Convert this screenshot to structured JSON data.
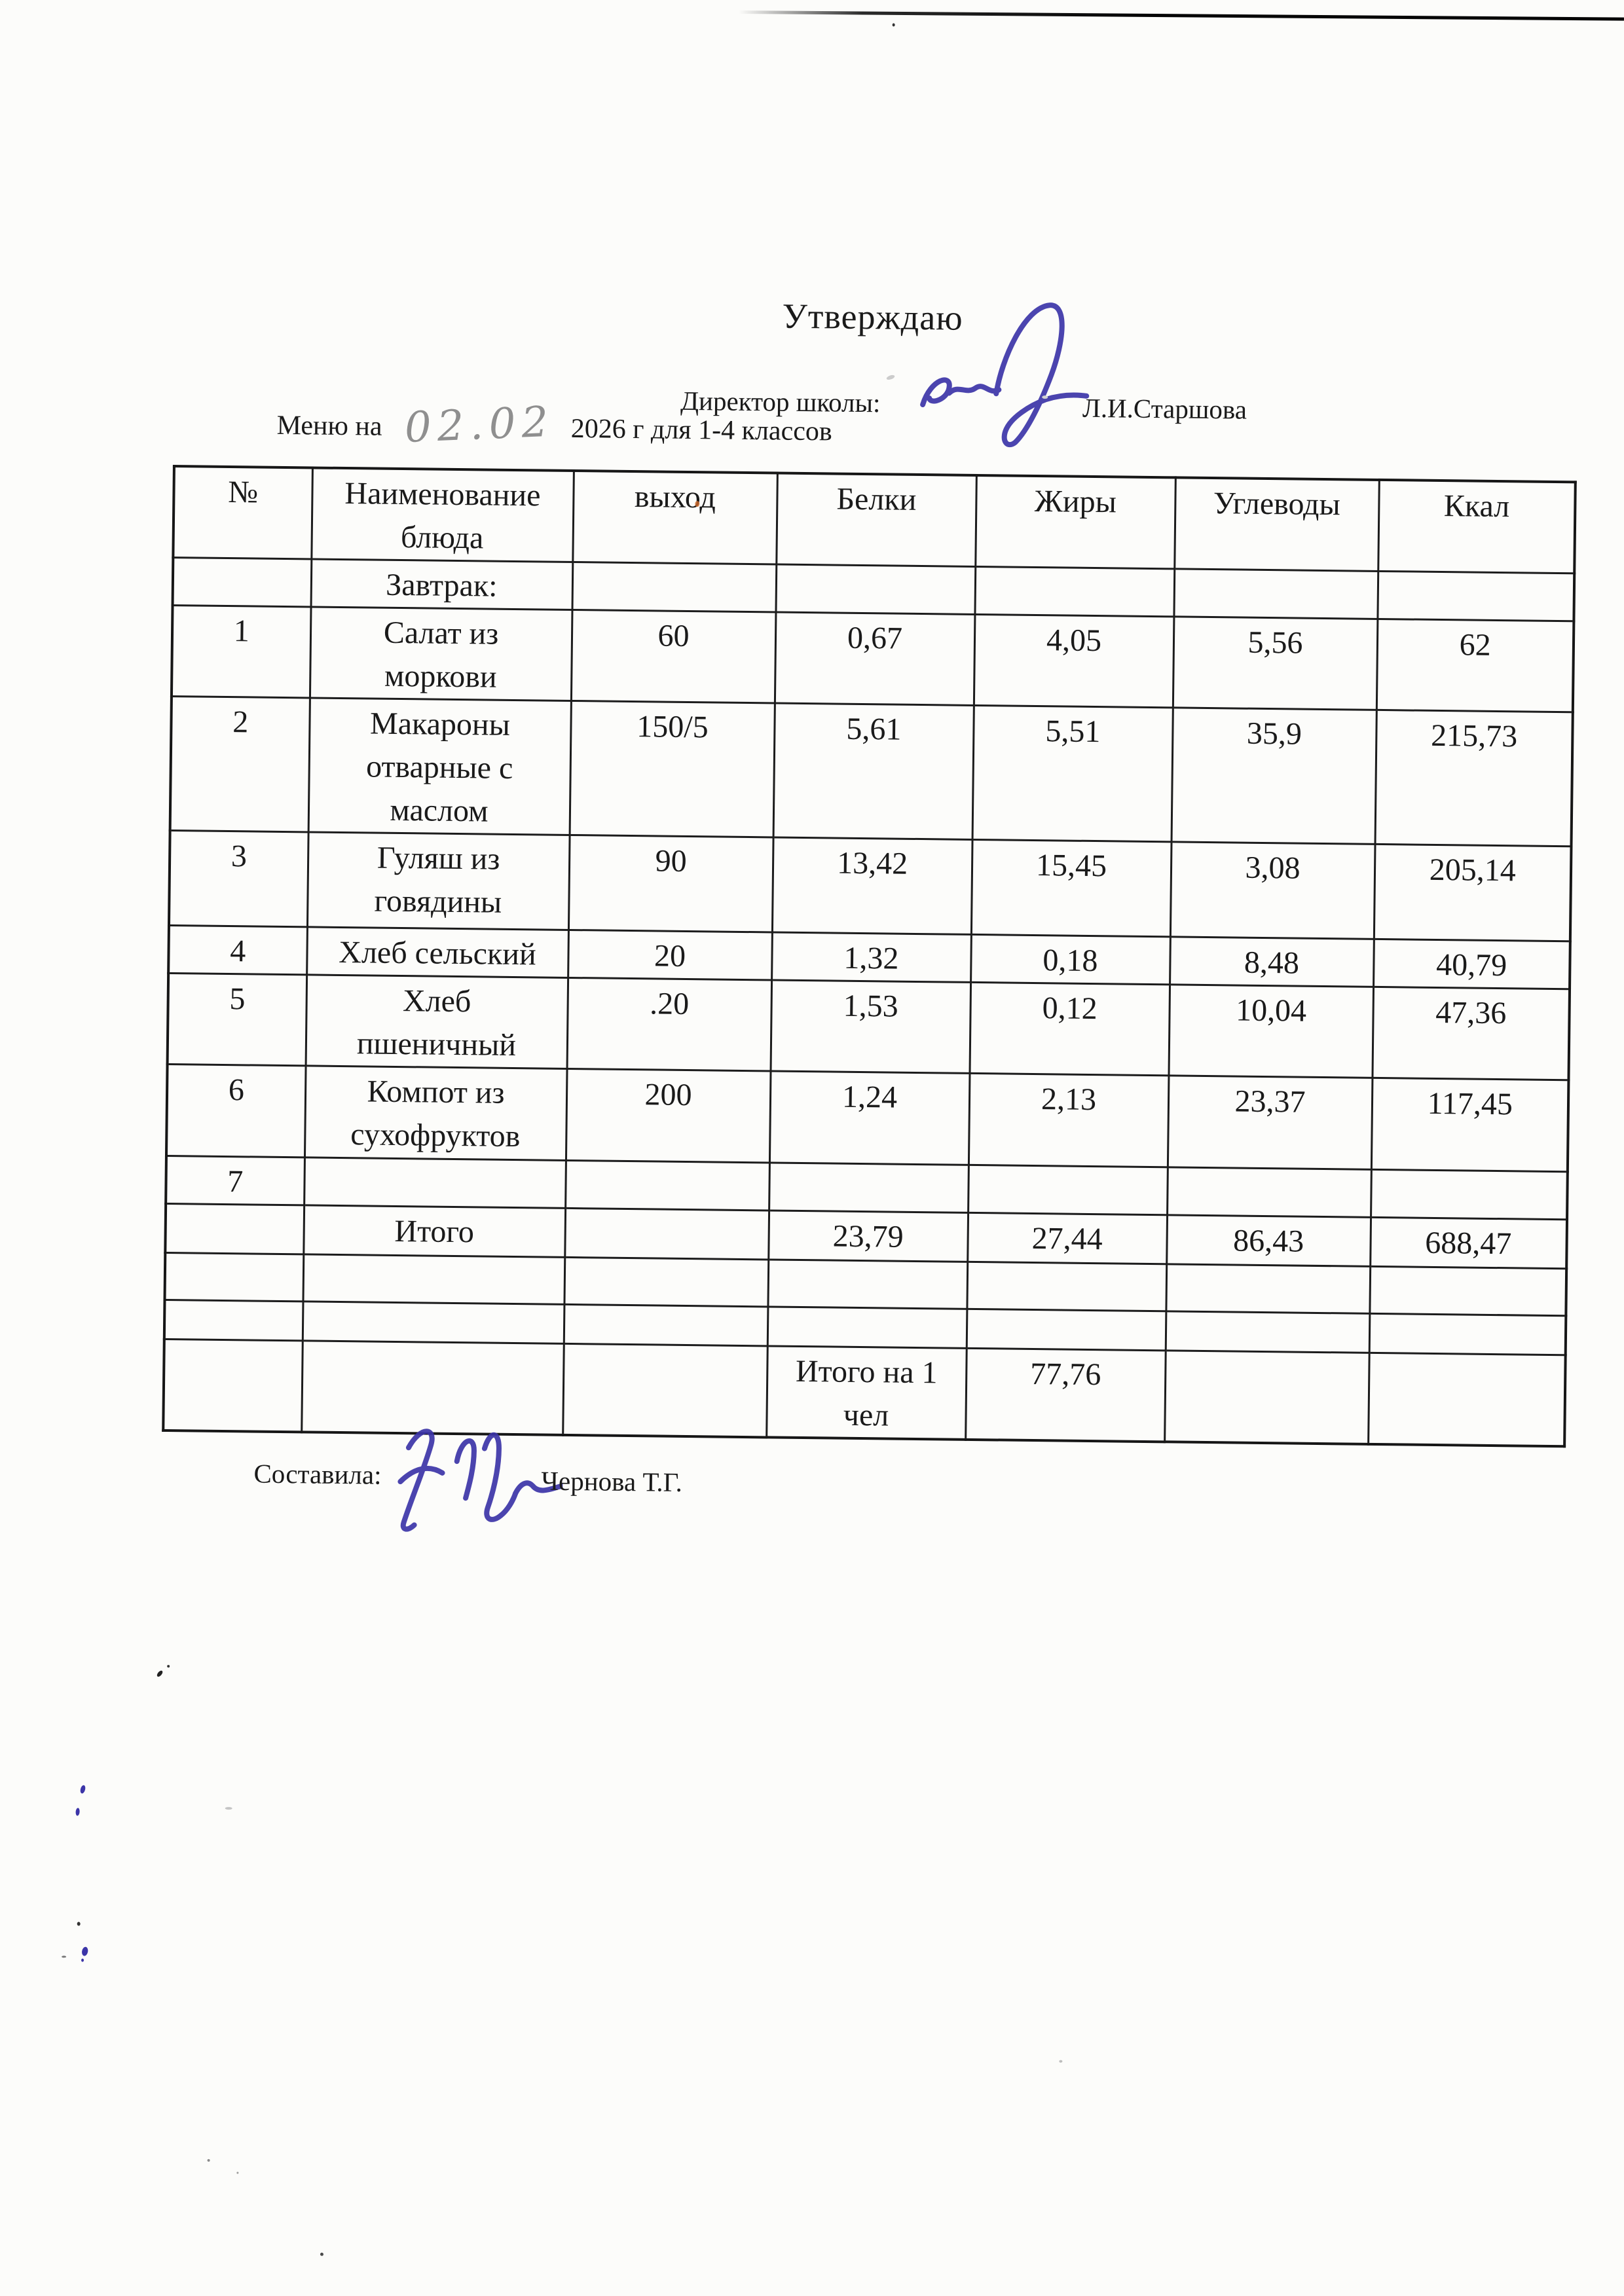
{
  "header": {
    "approval": "Утверждаю",
    "director_label": "Директор школы:",
    "director_name": "Л.И.Старшова",
    "menu_prefix": "Меню на",
    "menu_date_handwritten": "02.02",
    "menu_suffix": "2026 г для 1-4 классов"
  },
  "table": {
    "columns": [
      "№",
      "Наименование\nблюда",
      "выход",
      "Белки",
      "Жиры",
      "Углеводы",
      "Ккал"
    ],
    "rows": [
      [
        "",
        "Завтрак:",
        "",
        "",
        "",
        "",
        ""
      ],
      [
        "1",
        "Салат из\nморкови",
        "60",
        "0,67",
        "4,05",
        "5,56",
        "62"
      ],
      [
        "2",
        "Макароны\nотварные с\nмаслом",
        "150/5",
        "5,61",
        "5,51",
        "35,9",
        "215,73"
      ],
      [
        "3",
        "Гуляш из\nговядины",
        "90",
        "13,42",
        "15,45",
        "3,08",
        "205,14"
      ],
      [
        "4",
        "Хлеб сельский",
        "20",
        "1,32",
        "0,18",
        "8,48",
        "40,79"
      ],
      [
        "5",
        "Хлеб\nпшеничный",
        ".20",
        "1,53",
        "0,12",
        "10,04",
        "47,36"
      ],
      [
        "6",
        "Компот из\nсухофруктов",
        "200",
        "1,24",
        "2,13",
        "23,37",
        "117,45"
      ],
      [
        "7",
        "",
        "",
        "",
        "",
        "",
        ""
      ],
      [
        "",
        "Итого",
        "",
        "23,79",
        "27,44",
        "86,43",
        "688,47"
      ],
      [
        "",
        "",
        "",
        "",
        "",
        "",
        ""
      ],
      [
        "",
        "",
        "",
        "",
        "",
        "",
        ""
      ],
      [
        "",
        "",
        "",
        "Итого на 1\nчел",
        "77,76",
        "",
        ""
      ]
    ]
  },
  "footer": {
    "composed_label": "Составила:",
    "composed_name": "Чернова Т.Г."
  },
  "colors": {
    "ink_blue": "#3c35a8",
    "pencil_gray": "#8f8f8f",
    "paper": "#fcfcfa",
    "text": "#1a1a1a"
  }
}
